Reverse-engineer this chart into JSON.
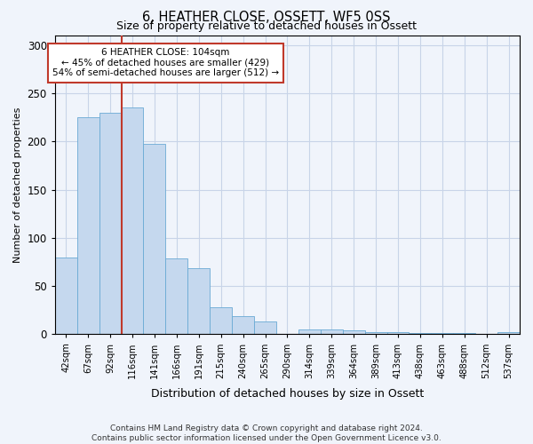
{
  "title": "6, HEATHER CLOSE, OSSETT, WF5 0SS",
  "subtitle": "Size of property relative to detached houses in Ossett",
  "xlabel": "Distribution of detached houses by size in Ossett",
  "ylabel": "Number of detached properties",
  "categories": [
    "42sqm",
    "67sqm",
    "92sqm",
    "116sqm",
    "141sqm",
    "166sqm",
    "191sqm",
    "215sqm",
    "240sqm",
    "265sqm",
    "290sqm",
    "314sqm",
    "339sqm",
    "364sqm",
    "389sqm",
    "413sqm",
    "438sqm",
    "463sqm",
    "488sqm",
    "512sqm",
    "537sqm"
  ],
  "values": [
    80,
    225,
    230,
    235,
    198,
    79,
    69,
    28,
    19,
    13,
    0,
    5,
    5,
    4,
    2,
    2,
    1,
    1,
    1,
    0,
    2
  ],
  "bar_color": "#c5d8ee",
  "bar_edge_color": "#6aaad4",
  "vline_x_idx": 3,
  "vline_color": "#c0392b",
  "annotation_text": "6 HEATHER CLOSE: 104sqm\n← 45% of detached houses are smaller (429)\n54% of semi-detached houses are larger (512) →",
  "annotation_box_color": "#ffffff",
  "annotation_box_edge": "#c0392b",
  "ylim": [
    0,
    310
  ],
  "yticks": [
    0,
    50,
    100,
    150,
    200,
    250,
    300
  ],
  "footer": "Contains HM Land Registry data © Crown copyright and database right 2024.\nContains public sector information licensed under the Open Government Licence v3.0.",
  "bg_color": "#f0f4fb",
  "grid_color": "#c8d4e8"
}
